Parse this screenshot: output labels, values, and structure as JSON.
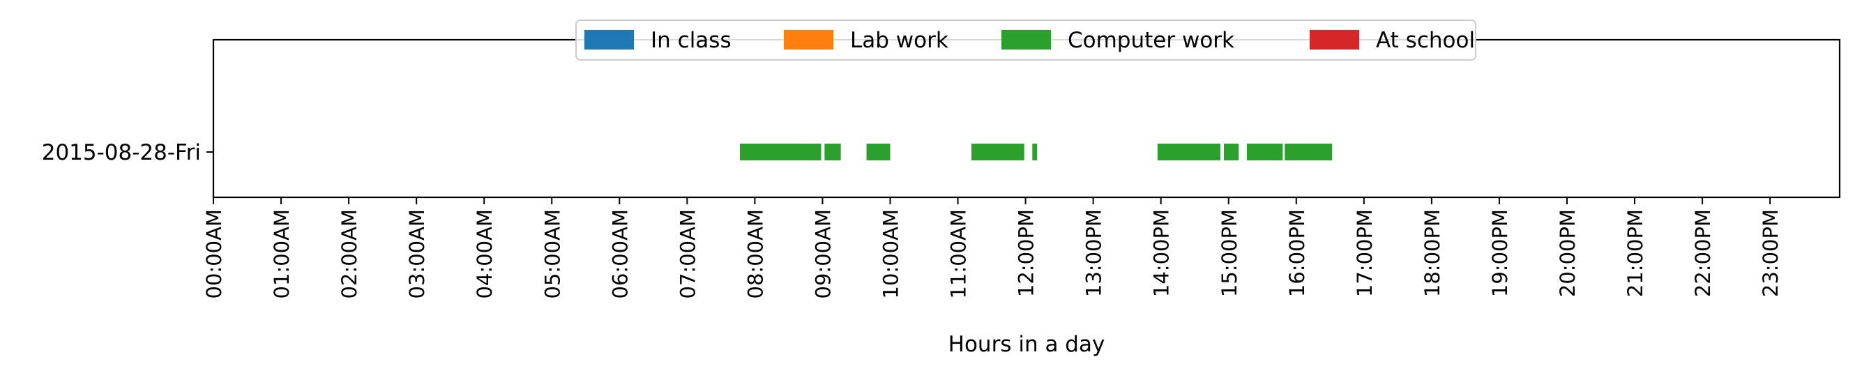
{
  "chart_data": {
    "type": "bar",
    "orientation": "horizontal-timeline",
    "title": "",
    "xlabel": "Hours in a day",
    "ylabel": "",
    "x_unit": "hours",
    "xlim": [
      0,
      24
    ],
    "grid": false,
    "legend": {
      "placement": "upper-center",
      "entries": [
        {
          "name": "In class",
          "color": "#1f77b4"
        },
        {
          "name": "Lab work",
          "color": "#ff7f0e"
        },
        {
          "name": "Computer work",
          "color": "#2ca02c"
        },
        {
          "name": "At school",
          "color": "#d62728"
        }
      ]
    },
    "categories": [
      "2015-08-28-Fri"
    ],
    "x_ticks": [
      {
        "value": 0,
        "label": "00:00AM"
      },
      {
        "value": 1,
        "label": "01:00AM"
      },
      {
        "value": 2,
        "label": "02:00AM"
      },
      {
        "value": 3,
        "label": "03:00AM"
      },
      {
        "value": 4,
        "label": "04:00AM"
      },
      {
        "value": 5,
        "label": "05:00AM"
      },
      {
        "value": 6,
        "label": "06:00AM"
      },
      {
        "value": 7,
        "label": "07:00AM"
      },
      {
        "value": 8,
        "label": "08:00AM"
      },
      {
        "value": 9,
        "label": "09:00AM"
      },
      {
        "value": 10,
        "label": "10:00AM"
      },
      {
        "value": 11,
        "label": "11:00AM"
      },
      {
        "value": 12,
        "label": "12:00PM"
      },
      {
        "value": 13,
        "label": "13:00PM"
      },
      {
        "value": 14,
        "label": "14:00PM"
      },
      {
        "value": 15,
        "label": "15:00PM"
      },
      {
        "value": 16,
        "label": "16:00PM"
      },
      {
        "value": 17,
        "label": "17:00PM"
      },
      {
        "value": 18,
        "label": "18:00PM"
      },
      {
        "value": 19,
        "label": "19:00PM"
      },
      {
        "value": 20,
        "label": "20:00PM"
      },
      {
        "value": 21,
        "label": "21:00PM"
      },
      {
        "value": 22,
        "label": "22:00PM"
      },
      {
        "value": 23,
        "label": "23:00PM"
      }
    ],
    "series": [
      {
        "name": "In class",
        "color": "#1f77b4",
        "segments": []
      },
      {
        "name": "Lab work",
        "color": "#ff7f0e",
        "segments": []
      },
      {
        "name": "Computer work",
        "color": "#2ca02c",
        "segments": [
          {
            "category": "2015-08-28-Fri",
            "start": 7.78,
            "end": 8.98
          },
          {
            "category": "2015-08-28-Fri",
            "start": 9.03,
            "end": 9.27
          },
          {
            "category": "2015-08-28-Fri",
            "start": 9.65,
            "end": 10.0
          },
          {
            "category": "2015-08-28-Fri",
            "start": 11.2,
            "end": 11.98
          },
          {
            "category": "2015-08-28-Fri",
            "start": 12.1,
            "end": 12.17
          },
          {
            "category": "2015-08-28-Fri",
            "start": 13.95,
            "end": 14.88
          },
          {
            "category": "2015-08-28-Fri",
            "start": 14.93,
            "end": 15.15
          },
          {
            "category": "2015-08-28-Fri",
            "start": 15.27,
            "end": 15.8
          },
          {
            "category": "2015-08-28-Fri",
            "start": 15.83,
            "end": 16.53
          }
        ]
      },
      {
        "name": "At school",
        "color": "#d62728",
        "segments": []
      }
    ]
  }
}
